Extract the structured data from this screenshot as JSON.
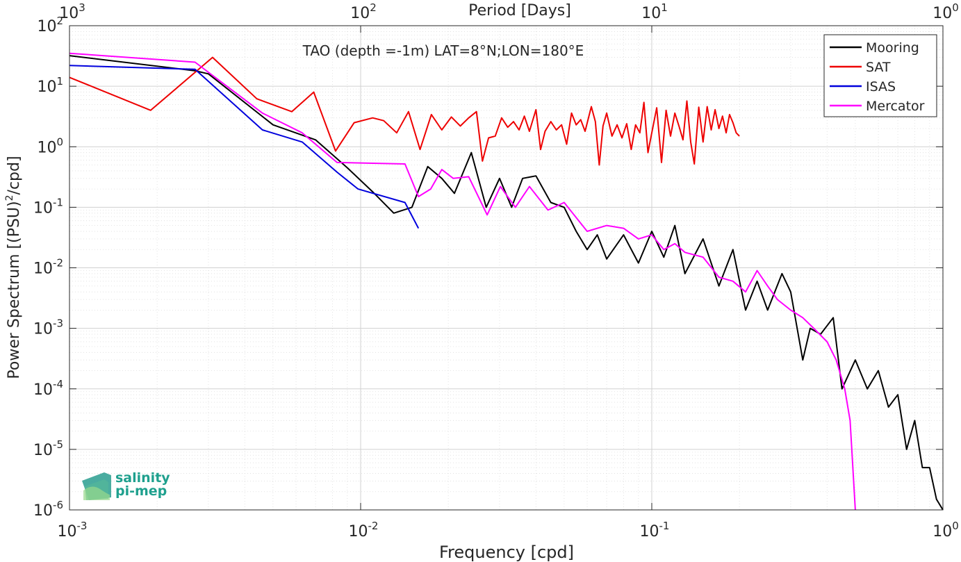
{
  "chart_data": {
    "type": "line",
    "title": "TAO (depth =-1m) LAT=8°N;LON=180°E",
    "xlabel": "Frequency [cpd]",
    "ylabel": "Power Spectrum [(PSU)",
    "ylabel_sup": "2",
    "ylabel_tail": "/cpd]",
    "top_axis_label": "Period [Days]",
    "xscale": "log",
    "yscale": "log",
    "xlim": [
      0.001,
      1
    ],
    "ylim": [
      1e-06,
      100
    ],
    "grid": true,
    "legend_position": "top-right",
    "x_ticks": [
      {
        "value": 0.001,
        "base": "10",
        "exp": "-3"
      },
      {
        "value": 0.01,
        "base": "10",
        "exp": "-2"
      },
      {
        "value": 0.1,
        "base": "10",
        "exp": "-1"
      },
      {
        "value": 1,
        "base": "10",
        "exp": "0"
      }
    ],
    "top_ticks": [
      {
        "freq": 0.001,
        "base": "10",
        "exp": "3"
      },
      {
        "freq": 0.01,
        "base": "10",
        "exp": "2"
      },
      {
        "freq": 0.1,
        "base": "10",
        "exp": "1"
      },
      {
        "freq": 1,
        "base": "10",
        "exp": "0"
      }
    ],
    "y_ticks": [
      {
        "value": 100,
        "base": "10",
        "exp": "2"
      },
      {
        "value": 10,
        "base": "10",
        "exp": "1"
      },
      {
        "value": 1,
        "base": "10",
        "exp": "0"
      },
      {
        "value": 0.1,
        "base": "10",
        "exp": "-1"
      },
      {
        "value": 0.01,
        "base": "10",
        "exp": "-2"
      },
      {
        "value": 0.001,
        "base": "10",
        "exp": "-3"
      },
      {
        "value": 0.0001,
        "base": "10",
        "exp": "-4"
      },
      {
        "value": 1e-05,
        "base": "10",
        "exp": "-5"
      },
      {
        "value": 1e-06,
        "base": "10",
        "exp": "-6"
      }
    ],
    "series": [
      {
        "name": "Mooring",
        "color": "#000000",
        "points": [
          [
            0.001,
            32
          ],
          [
            0.0027,
            18
          ],
          [
            0.003,
            16
          ],
          [
            0.005,
            2.3
          ],
          [
            0.007,
            1.3
          ],
          [
            0.009,
            0.45
          ],
          [
            0.011,
            0.18
          ],
          [
            0.013,
            0.08
          ],
          [
            0.015,
            0.1
          ],
          [
            0.017,
            0.47
          ],
          [
            0.019,
            0.3
          ],
          [
            0.021,
            0.17
          ],
          [
            0.024,
            0.8
          ],
          [
            0.027,
            0.1
          ],
          [
            0.03,
            0.3
          ],
          [
            0.033,
            0.1
          ],
          [
            0.036,
            0.3
          ],
          [
            0.04,
            0.33
          ],
          [
            0.045,
            0.12
          ],
          [
            0.05,
            0.1
          ],
          [
            0.055,
            0.04
          ],
          [
            0.06,
            0.02
          ],
          [
            0.065,
            0.035
          ],
          [
            0.07,
            0.014
          ],
          [
            0.08,
            0.035
          ],
          [
            0.09,
            0.012
          ],
          [
            0.1,
            0.04
          ],
          [
            0.11,
            0.015
          ],
          [
            0.12,
            0.05
          ],
          [
            0.13,
            0.008
          ],
          [
            0.15,
            0.03
          ],
          [
            0.17,
            0.005
          ],
          [
            0.19,
            0.02
          ],
          [
            0.21,
            0.002
          ],
          [
            0.23,
            0.006
          ],
          [
            0.25,
            0.002
          ],
          [
            0.28,
            0.008
          ],
          [
            0.3,
            0.004
          ],
          [
            0.33,
            0.0003
          ],
          [
            0.35,
            0.001
          ],
          [
            0.38,
            0.0008
          ],
          [
            0.42,
            0.0015
          ],
          [
            0.45,
            0.0001
          ],
          [
            0.5,
            0.0003
          ],
          [
            0.55,
            0.0001
          ],
          [
            0.6,
            0.0002
          ],
          [
            0.65,
            5e-05
          ],
          [
            0.7,
            8e-05
          ],
          [
            0.75,
            1e-05
          ],
          [
            0.8,
            3e-05
          ],
          [
            0.85,
            5e-06
          ],
          [
            0.9,
            5e-06
          ],
          [
            0.95,
            1.5e-06
          ],
          [
            1.0,
            1e-06
          ]
        ]
      },
      {
        "name": "SAT",
        "color": "#ee0000",
        "points": [
          [
            0.001,
            14
          ],
          [
            0.0019,
            4
          ],
          [
            0.0031,
            30
          ],
          [
            0.0044,
            6.2
          ],
          [
            0.0058,
            3.8
          ],
          [
            0.0069,
            8
          ],
          [
            0.0082,
            0.85
          ],
          [
            0.0095,
            2.5
          ],
          [
            0.011,
            3
          ],
          [
            0.012,
            2.7
          ],
          [
            0.0133,
            1.7
          ],
          [
            0.0146,
            3.8
          ],
          [
            0.016,
            0.9
          ],
          [
            0.0175,
            3.4
          ],
          [
            0.019,
            1.9
          ],
          [
            0.0205,
            3.1
          ],
          [
            0.022,
            2.2
          ],
          [
            0.0235,
            3
          ],
          [
            0.025,
            3.8
          ],
          [
            0.0262,
            0.58
          ],
          [
            0.0275,
            1.4
          ],
          [
            0.029,
            1.5
          ],
          [
            0.0305,
            3
          ],
          [
            0.032,
            2.1
          ],
          [
            0.0335,
            2.6
          ],
          [
            0.035,
            1.9
          ],
          [
            0.0365,
            3.2
          ],
          [
            0.038,
            1.8
          ],
          [
            0.04,
            4.1
          ],
          [
            0.0415,
            0.9
          ],
          [
            0.043,
            1.8
          ],
          [
            0.045,
            2.6
          ],
          [
            0.047,
            1.9
          ],
          [
            0.049,
            2.3
          ],
          [
            0.051,
            1.1
          ],
          [
            0.053,
            3.6
          ],
          [
            0.055,
            2.3
          ],
          [
            0.057,
            2.8
          ],
          [
            0.059,
            1.8
          ],
          [
            0.062,
            4.6
          ],
          [
            0.064,
            2.6
          ],
          [
            0.066,
            0.5
          ],
          [
            0.068,
            2.2
          ],
          [
            0.07,
            3.6
          ],
          [
            0.073,
            1.5
          ],
          [
            0.076,
            2.3
          ],
          [
            0.079,
            1.4
          ],
          [
            0.082,
            2.4
          ],
          [
            0.085,
            0.9
          ],
          [
            0.088,
            2.3
          ],
          [
            0.091,
            1.7
          ],
          [
            0.094,
            5.4
          ],
          [
            0.097,
            0.8
          ],
          [
            0.1,
            1.7
          ],
          [
            0.104,
            4.4
          ],
          [
            0.108,
            0.55
          ],
          [
            0.112,
            4
          ],
          [
            0.116,
            1.5
          ],
          [
            0.12,
            3.6
          ],
          [
            0.124,
            2.2
          ],
          [
            0.128,
            1.3
          ],
          [
            0.132,
            5.7
          ],
          [
            0.136,
            1.2
          ],
          [
            0.14,
            0.52
          ],
          [
            0.145,
            4.5
          ],
          [
            0.15,
            1.2
          ],
          [
            0.155,
            4.6
          ],
          [
            0.16,
            1.9
          ],
          [
            0.165,
            4.1
          ],
          [
            0.17,
            2
          ],
          [
            0.175,
            3.2
          ],
          [
            0.18,
            1.7
          ],
          [
            0.185,
            3.4
          ],
          [
            0.19,
            2.5
          ],
          [
            0.195,
            1.7
          ],
          [
            0.2,
            1.5
          ]
        ]
      },
      {
        "name": "ISAS",
        "color": "#0000dd",
        "points": [
          [
            0.001,
            22
          ],
          [
            0.0027,
            19
          ],
          [
            0.0046,
            1.9
          ],
          [
            0.0063,
            1.2
          ],
          [
            0.0083,
            0.38
          ],
          [
            0.0098,
            0.2
          ],
          [
            0.0142,
            0.12
          ],
          [
            0.0158,
            0.045
          ]
        ]
      },
      {
        "name": "Mercator",
        "color": "#ff00ff",
        "points": [
          [
            0.001,
            35
          ],
          [
            0.0027,
            25
          ],
          [
            0.0046,
            3.6
          ],
          [
            0.0063,
            1.7
          ],
          [
            0.0083,
            0.55
          ],
          [
            0.0142,
            0.52
          ],
          [
            0.0158,
            0.15
          ],
          [
            0.0174,
            0.2
          ],
          [
            0.019,
            0.42
          ],
          [
            0.0208,
            0.3
          ],
          [
            0.0235,
            0.32
          ],
          [
            0.0272,
            0.075
          ],
          [
            0.0302,
            0.22
          ],
          [
            0.034,
            0.1
          ],
          [
            0.038,
            0.22
          ],
          [
            0.044,
            0.09
          ],
          [
            0.05,
            0.12
          ],
          [
            0.06,
            0.04
          ],
          [
            0.07,
            0.05
          ],
          [
            0.08,
            0.045
          ],
          [
            0.09,
            0.03
          ],
          [
            0.1,
            0.035
          ],
          [
            0.11,
            0.02
          ],
          [
            0.12,
            0.025
          ],
          [
            0.13,
            0.018
          ],
          [
            0.15,
            0.015
          ],
          [
            0.17,
            0.007
          ],
          [
            0.19,
            0.006
          ],
          [
            0.21,
            0.004
          ],
          [
            0.23,
            0.009
          ],
          [
            0.25,
            0.005
          ],
          [
            0.27,
            0.003
          ],
          [
            0.3,
            0.002
          ],
          [
            0.33,
            0.0015
          ],
          [
            0.36,
            0.001
          ],
          [
            0.4,
            0.0006
          ],
          [
            0.43,
            0.0003
          ],
          [
            0.46,
            0.0001
          ],
          [
            0.48,
            3e-05
          ],
          [
            0.5,
            1e-06
          ]
        ]
      }
    ]
  },
  "logo": {
    "line1": "salinity",
    "line2": "pi-mep"
  }
}
